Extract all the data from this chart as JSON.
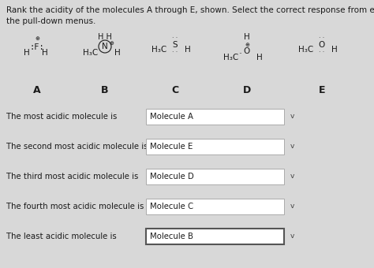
{
  "title_line1": "Rank the acidity of the molecules A through E, shown. Select the correct response from each of",
  "title_line2": "the pull-down menus.",
  "bg_color": "#d8d8d8",
  "questions": [
    {
      "text": "The most acidic molecule is",
      "answer": "Molecule A",
      "has_thick_border": false
    },
    {
      "text": "The second most acidic molecule is",
      "answer": "Molecule E",
      "has_thick_border": false
    },
    {
      "text": "The third most acidic molecule is",
      "answer": "Molecule D",
      "has_thick_border": false
    },
    {
      "text": "The fourth most acidic molecule is",
      "answer": "Molecule C",
      "has_thick_border": false
    },
    {
      "text": "The least acidic molecule is",
      "answer": "Molecule B",
      "has_thick_border": true
    }
  ],
  "text_color": "#1a1a1a",
  "box_color": "#ffffff",
  "box_edge_color": "#aaaaaa",
  "box_thick_edge": "#555555",
  "font_size_title": 7.5,
  "font_size_label": 9.0,
  "font_size_molecule": 7.5,
  "font_size_question": 7.3,
  "font_size_answer": 7.3
}
